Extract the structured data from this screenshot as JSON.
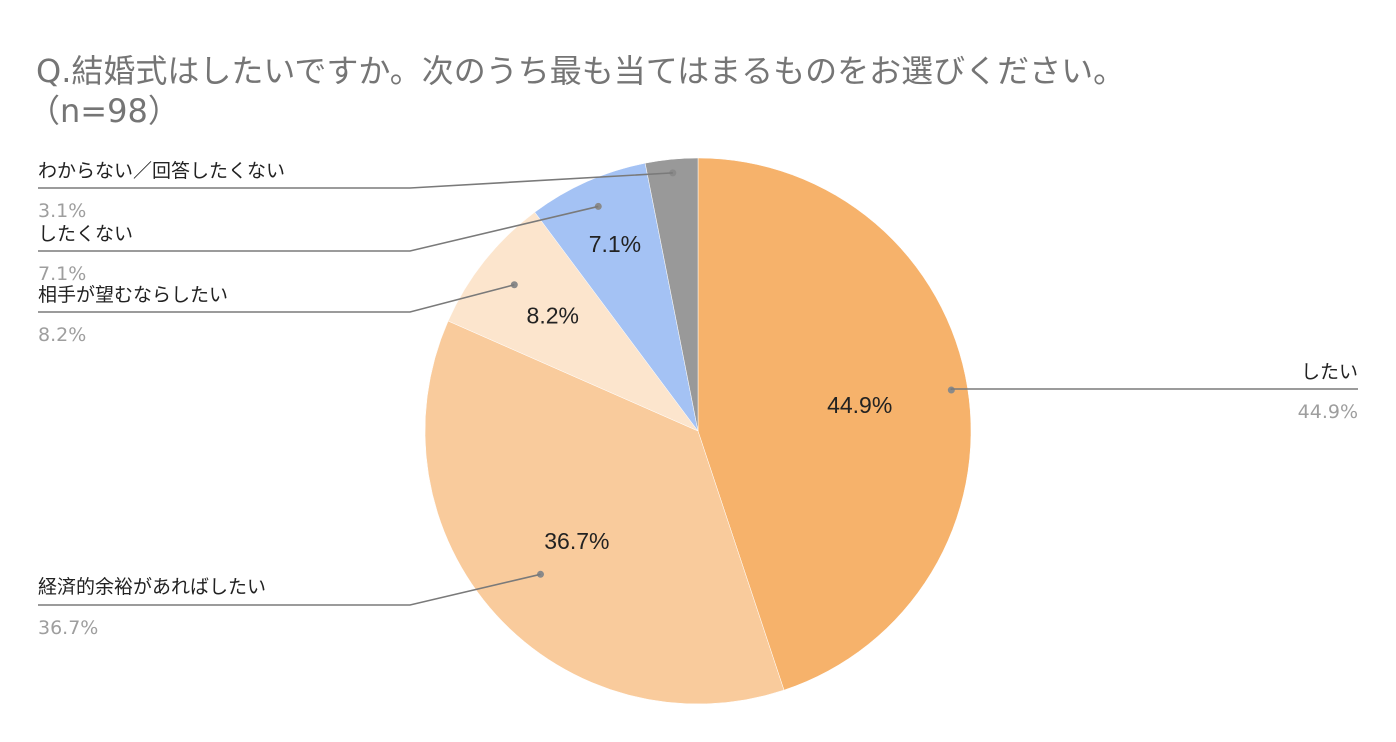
{
  "chart_data": {
    "type": "pie",
    "title_line1": "Q.結婚式はしたいですか。次のうち最も当てはまるものをお選びください。",
    "title_line2": "（n=98）",
    "start_angle_deg": 0,
    "direction": "clockwise",
    "slices": [
      {
        "label": "したい",
        "value": 44.9,
        "display": "44.9%",
        "color": "#f6b26b"
      },
      {
        "label": "経済的余裕があればしたい",
        "value": 36.7,
        "display": "36.7%",
        "color": "#f9cb9c"
      },
      {
        "label": "相手が望むならしたい",
        "value": 8.2,
        "display": "8.2%",
        "color": "#fce5cd"
      },
      {
        "label": "したくない",
        "value": 7.1,
        "display": "7.1%",
        "color": "#a4c2f4"
      },
      {
        "label": "わからない／回答したくない",
        "value": 3.1,
        "display": "3.1%",
        "color": "#999999"
      }
    ]
  }
}
